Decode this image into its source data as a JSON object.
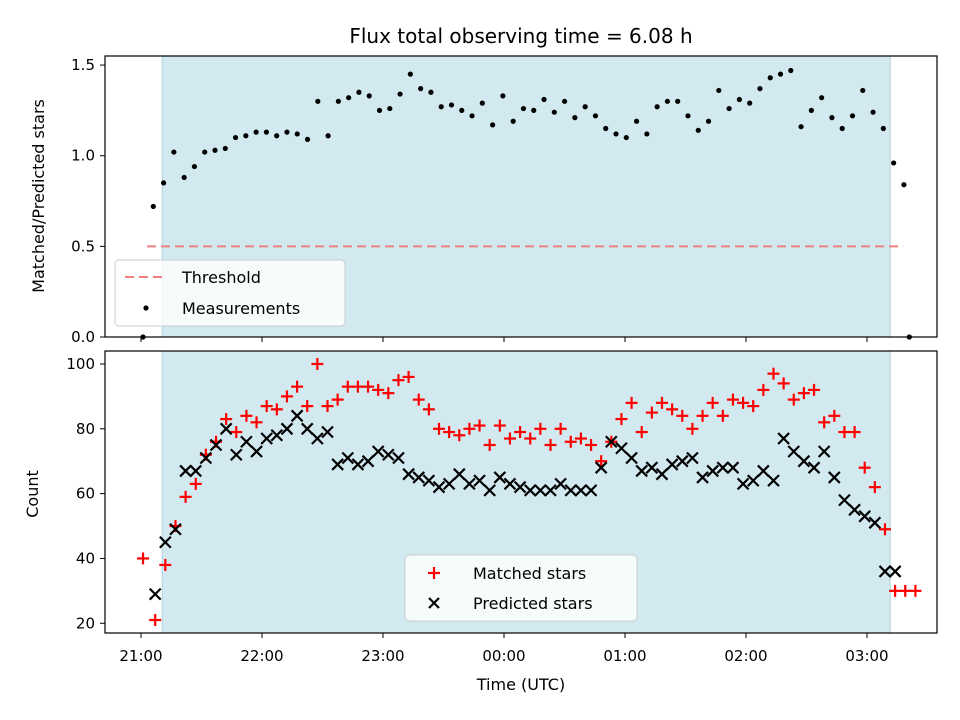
{
  "chart_data": [
    {
      "type": "scatter",
      "title": "Flux total observing time = 6.08 h",
      "ylabel": "Matched/Predicted stars",
      "xlabel": "",
      "ylim": [
        0,
        1.55
      ],
      "yticks": [
        "0.0",
        "0.5",
        "1.0",
        "1.5"
      ],
      "x_range_minutes": [
        -17,
        230
      ],
      "shaded_range_minutes": [
        5,
        220
      ],
      "shade_color": "#d2e9f0",
      "grid": false,
      "legend_position": "lower-left",
      "threshold": {
        "name": "Threshold",
        "value": 0.5,
        "x_minutes": [
          1,
          223
        ],
        "color": "#f08080"
      },
      "series": [
        {
          "name": "Measurements",
          "color": "#000000",
          "x_minutes": [
            1,
            4,
            7,
            10,
            13,
            16,
            19,
            22,
            25,
            28,
            31,
            34,
            37,
            40,
            43,
            46,
            49,
            52,
            55,
            58,
            61,
            64,
            67,
            70,
            73,
            76,
            79,
            82,
            85,
            88,
            91,
            94,
            97,
            100,
            103,
            106,
            109,
            112,
            115,
            118,
            121,
            124,
            127,
            130,
            133,
            136,
            139,
            142,
            145,
            148,
            151,
            154,
            157,
            160,
            163,
            166,
            169,
            172,
            175,
            178,
            181,
            184,
            187,
            190,
            193,
            196,
            199,
            202,
            205,
            208,
            211,
            214,
            217,
            220,
            223
          ],
          "values": [
            0.0,
            0.72,
            0.85,
            1.02,
            0.88,
            0.94,
            1.02,
            1.03,
            1.04,
            1.1,
            1.11,
            1.13,
            1.13,
            1.11,
            1.13,
            1.12,
            1.09,
            1.3,
            1.11,
            1.3,
            1.32,
            1.35,
            1.33,
            1.25,
            1.26,
            1.34,
            1.45,
            1.37,
            1.35,
            1.27,
            1.28,
            1.25,
            1.22,
            1.29,
            1.17,
            1.33,
            1.19,
            1.26,
            1.25,
            1.31,
            1.24,
            1.3,
            1.21,
            1.27,
            1.22,
            1.15,
            1.12,
            1.1,
            1.19,
            1.12,
            1.27,
            1.3,
            1.3,
            1.22,
            1.14,
            1.19,
            1.36,
            1.26,
            1.31,
            1.29,
            1.37,
            1.43,
            1.45,
            1.47,
            1.16,
            1.25,
            1.32,
            1.21,
            1.15,
            1.22,
            1.36,
            1.24,
            1.15,
            0.96,
            0.84
          ]
        }
      ],
      "extra_points": [
        {
          "x_minutes": 223,
          "value": 0.0
        }
      ]
    },
    {
      "type": "scatter",
      "title": "",
      "xlabel": "Time (UTC)",
      "ylabel": "Count",
      "ylim": [
        17,
        104
      ],
      "yticks": [
        "20",
        "40",
        "60",
        "80",
        "100"
      ],
      "x_ticks": [
        {
          "minutes": 0,
          "label": "21:00"
        },
        {
          "minutes": 60,
          "label": "22:00"
        },
        {
          "minutes": 120,
          "label": "23:00"
        },
        {
          "minutes": 180,
          "label": "00:00"
        },
        {
          "minutes": 240,
          "label": "01:00"
        },
        {
          "minutes": 300,
          "label": "02:00"
        },
        {
          "minutes": 360,
          "label": "03:00"
        }
      ],
      "x_range_minutes": [
        -17,
        400
      ],
      "shaded_range_minutes": [
        7,
        372
      ],
      "shade_color": "#d2e9f0",
      "grid": false,
      "legend_position": "bottom-center",
      "series": [
        {
          "name": "Matched stars",
          "marker": "plus",
          "color": "#ff0000",
          "x_minutes": [
            1,
            7,
            12,
            17,
            22,
            27,
            32,
            37,
            42,
            47,
            52,
            57,
            62,
            67,
            72,
            77,
            82,
            87,
            92,
            97,
            102,
            107,
            112,
            117,
            122,
            127,
            132,
            137,
            142,
            147,
            152,
            157,
            162,
            167,
            172,
            177,
            182,
            187,
            192,
            197,
            202,
            207,
            212,
            217,
            222,
            227,
            232,
            237,
            242,
            247,
            252,
            257,
            262,
            267,
            272,
            277,
            282,
            287,
            292,
            297,
            302,
            307,
            312,
            317,
            322,
            327,
            332,
            337,
            342,
            347,
            352,
            357,
            362,
            367,
            372,
            377,
            382
          ],
          "values": [
            40,
            21,
            38,
            50,
            59,
            63,
            72,
            76,
            83,
            79,
            84,
            82,
            87,
            86,
            90,
            93,
            87,
            100,
            87,
            89,
            93,
            93,
            93,
            92,
            91,
            95,
            96,
            89,
            86,
            80,
            79,
            78,
            80,
            81,
            75,
            81,
            77,
            79,
            77,
            80,
            75,
            80,
            76,
            77,
            75,
            70,
            76,
            83,
            88,
            79,
            85,
            88,
            86,
            84,
            80,
            84,
            88,
            84,
            89,
            88,
            87,
            92,
            97,
            94,
            89,
            91,
            92,
            82,
            84,
            79,
            79,
            68,
            62,
            49,
            30,
            30,
            30
          ]
        },
        {
          "name": "Predicted stars",
          "marker": "x",
          "color": "#000000",
          "x_minutes": [
            7,
            12,
            17,
            22,
            27,
            32,
            37,
            42,
            47,
            52,
            57,
            62,
            67,
            72,
            77,
            82,
            87,
            92,
            97,
            102,
            107,
            112,
            117,
            122,
            127,
            132,
            137,
            142,
            147,
            152,
            157,
            162,
            167,
            172,
            177,
            182,
            187,
            192,
            197,
            202,
            207,
            212,
            217,
            222,
            227,
            232,
            237,
            242,
            247,
            252,
            257,
            262,
            267,
            272,
            277,
            282,
            287,
            292,
            297,
            302,
            307,
            312,
            317,
            322,
            327,
            332,
            337,
            342,
            347,
            352,
            357,
            362,
            367,
            372
          ],
          "values": [
            29,
            45,
            49,
            67,
            67,
            71,
            75,
            80,
            72,
            76,
            73,
            77,
            78,
            80,
            84,
            80,
            77,
            79,
            69,
            71,
            69,
            70,
            73,
            72,
            71,
            66,
            65,
            64,
            62,
            63,
            66,
            63,
            64,
            61,
            65,
            63,
            62,
            61,
            61,
            61,
            63,
            61,
            61,
            61,
            68,
            76,
            74,
            71,
            67,
            68,
            66,
            69,
            70,
            71,
            65,
            67,
            68,
            68,
            63,
            64,
            67,
            64,
            77,
            73,
            70,
            68,
            73,
            65,
            58,
            55,
            53,
            51,
            36,
            36
          ]
        }
      ]
    }
  ]
}
